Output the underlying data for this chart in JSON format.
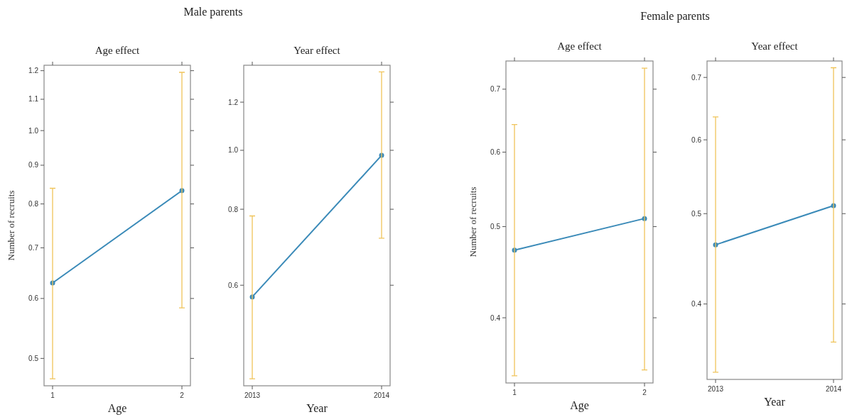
{
  "chart_data": [
    {
      "type": "line",
      "title": "Age effect",
      "annotations": [
        "Male parents"
      ],
      "xlabel": "Age",
      "ylabel": "Number of recruits",
      "categories": [
        "1",
        "2"
      ],
      "log": true,
      "marker": "circle",
      "ylim": [
        0.46,
        1.22
      ],
      "yticks": [
        0.5,
        0.6,
        0.7,
        0.8,
        0.9,
        {
          "value": 1,
          "label": "1.0"
        },
        1.1,
        1.2
      ],
      "series": [
        {
          "color": "#3a8ab8",
          "values": [
            0.629,
            0.833
          ],
          "errors": [
            [
              0.47,
              0.839
            ],
            [
              0.583,
              1.194
            ]
          ]
        }
      ]
    },
    {
      "type": "line",
      "title": "Year effect",
      "xlabel": "Year",
      "categories": [
        "2013",
        "2014"
      ],
      "log": true,
      "marker": "circle",
      "ylim": [
        0.41,
        1.38
      ],
      "yticks": [
        0.6,
        0.8,
        {
          "value": 1,
          "label": "1.0"
        },
        1.2
      ],
      "series": [
        {
          "color": "#3a8ab8",
          "values": [
            0.574,
            0.981
          ],
          "errors": [
            [
              0.421,
              0.78
            ],
            [
              0.717,
              1.346
            ]
          ]
        }
      ]
    },
    {
      "type": "line",
      "title": "Age effect",
      "annotations": [
        "Female parents"
      ],
      "xlabel": "Age",
      "ylabel": "Number of recruits",
      "categories": [
        "1",
        "2"
      ],
      "log": true,
      "marker": "circle",
      "ylim": [
        0.341,
        0.75
      ],
      "yticks": [
        0.4,
        0.5,
        0.6,
        0.7
      ],
      "series": [
        {
          "color": "#3a8ab8",
          "values": [
            0.472,
            0.51
          ],
          "errors": [
            [
              0.347,
              0.642
            ],
            [
              0.352,
              0.737
            ]
          ]
        }
      ]
    },
    {
      "type": "line",
      "title": "Year effect",
      "xlabel": "Year",
      "categories": [
        "2013",
        "2014"
      ],
      "log": true,
      "marker": "circle",
      "ylim": [
        0.332,
        0.729
      ],
      "yticks": [
        0.4,
        0.5,
        0.6,
        0.7
      ],
      "series": [
        {
          "color": "#3a8ab8",
          "values": [
            0.463,
            0.51
          ],
          "errors": [
            [
              0.338,
              0.635
            ],
            [
              0.364,
              0.717
            ]
          ]
        }
      ]
    }
  ]
}
